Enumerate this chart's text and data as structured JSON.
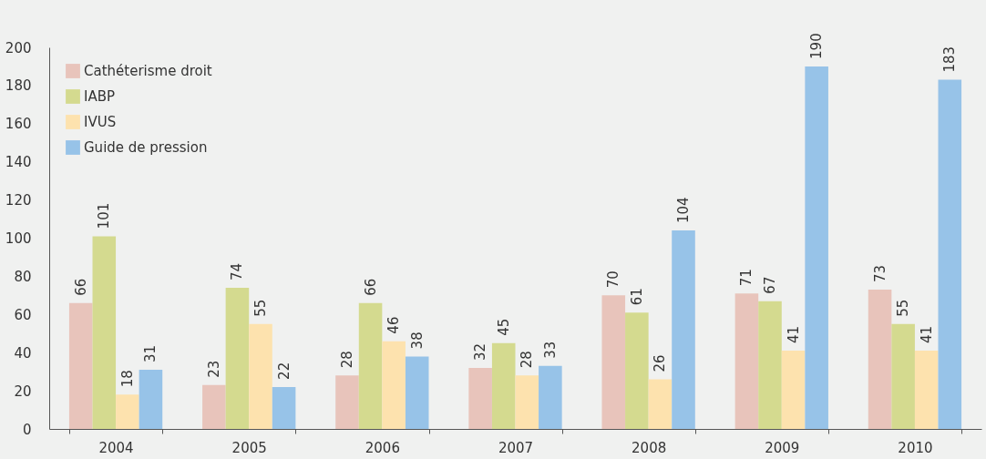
{
  "chart_data": {
    "type": "bar",
    "categories": [
      "2004",
      "2005",
      "2006",
      "2007",
      "2008",
      "2009",
      "2010"
    ],
    "series": [
      {
        "name": "Cathéterisme droit",
        "color": "#e8c4bb",
        "values": [
          66,
          23,
          28,
          32,
          70,
          71,
          73
        ]
      },
      {
        "name": "IABP",
        "color": "#d4da8f",
        "values": [
          101,
          74,
          66,
          45,
          61,
          67,
          55
        ]
      },
      {
        "name": "IVUS",
        "color": "#fde2ae",
        "values": [
          18,
          55,
          46,
          28,
          26,
          41,
          41
        ]
      },
      {
        "name": "Guide de pression",
        "color": "#97c3e8",
        "values": [
          31,
          22,
          38,
          33,
          104,
          190,
          183
        ]
      }
    ],
    "ylim": [
      0,
      200
    ],
    "yticks": [
      0,
      20,
      40,
      60,
      80,
      100,
      120,
      140,
      160,
      180,
      200
    ],
    "grid": false,
    "legend": "top left",
    "data_labels": true
  }
}
